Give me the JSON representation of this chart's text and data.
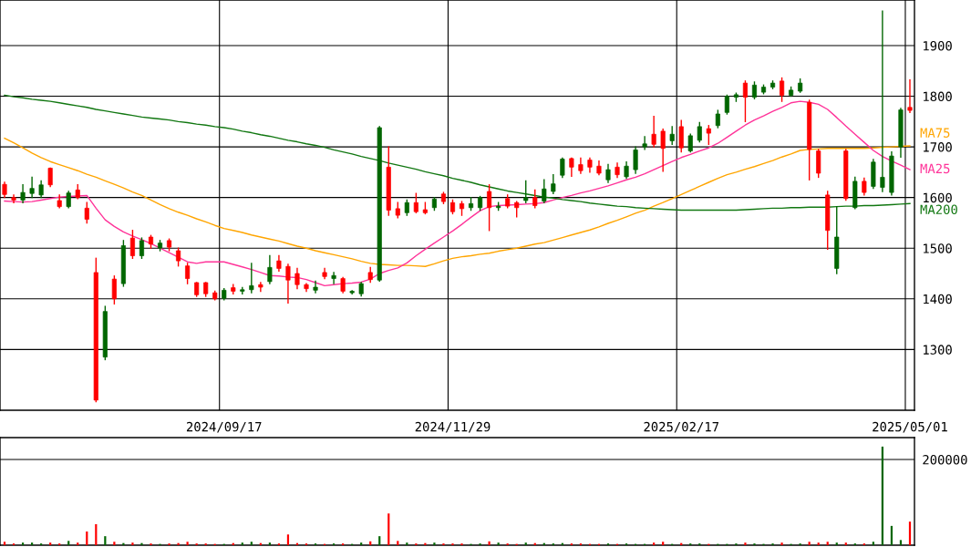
{
  "chart_data": [
    {
      "type": "candlestick",
      "categories": [
        null,
        null,
        null,
        null,
        null,
        null,
        null,
        null,
        null,
        null,
        null,
        null,
        null,
        null,
        null,
        null,
        null,
        null,
        null,
        null,
        null,
        null,
        null,
        null,
        "2024/09/17",
        null,
        null,
        null,
        null,
        null,
        null,
        null,
        null,
        null,
        null,
        null,
        null,
        null,
        null,
        null,
        null,
        null,
        null,
        null,
        null,
        null,
        null,
        null,
        null,
        "2024/11/29",
        null,
        null,
        null,
        null,
        null,
        null,
        null,
        null,
        null,
        null,
        null,
        null,
        null,
        null,
        null,
        null,
        null,
        null,
        null,
        null,
        null,
        null,
        null,
        null,
        "2025/02/17",
        null,
        null,
        null,
        null,
        null,
        null,
        null,
        null,
        null,
        null,
        null,
        null,
        null,
        null,
        null,
        null,
        null,
        null,
        null,
        null,
        null,
        null,
        null,
        null,
        "2025/05/01"
      ],
      "ohlc": [
        [
          1626,
          1630,
          1600,
          1606
        ],
        [
          1600,
          1605,
          1590,
          1595
        ],
        [
          1595,
          1625,
          1590,
          1610
        ],
        [
          1608,
          1640,
          1600,
          1618
        ],
        [
          1605,
          1633,
          1600,
          1625
        ],
        [
          1658,
          1658,
          1622,
          1625
        ],
        [
          1594,
          1605,
          1580,
          1582
        ],
        [
          1582,
          1612,
          1580,
          1609
        ],
        [
          1615,
          1625,
          1598,
          1600
        ],
        [
          1579,
          1590,
          1550,
          1557
        ],
        [
          1452,
          1480,
          1197,
          1200
        ],
        [
          1285,
          1385,
          1280,
          1375
        ],
        [
          1439,
          1445,
          1390,
          1400
        ],
        [
          1430,
          1515,
          1425,
          1505
        ],
        [
          1520,
          1535,
          1480,
          1485
        ],
        [
          1485,
          1520,
          1480,
          1515
        ],
        [
          1522,
          1525,
          1500,
          1508
        ],
        [
          1500,
          1515,
          1495,
          1510
        ],
        [
          1515,
          1518,
          1495,
          1502
        ],
        [
          1495,
          1500,
          1465,
          1475
        ],
        [
          1465,
          1470,
          1430,
          1440
        ],
        [
          1432,
          1432,
          1405,
          1408
        ],
        [
          1432,
          1432,
          1405,
          1410
        ],
        [
          1412,
          1415,
          1398,
          1400
        ],
        [
          1401,
          1420,
          1398,
          1417
        ],
        [
          1422,
          1428,
          1410,
          1415
        ],
        [
          1415,
          1422,
          1410,
          1418
        ],
        [
          1418,
          1470,
          1412,
          1426
        ],
        [
          1428,
          1432,
          1415,
          1423
        ],
        [
          1434,
          1485,
          1430,
          1462
        ],
        [
          1475,
          1485,
          1455,
          1460
        ],
        [
          1464,
          1468,
          1392,
          1437
        ],
        [
          1450,
          1460,
          1420,
          1428
        ],
        [
          1428,
          1430,
          1415,
          1420
        ],
        [
          1417,
          1435,
          1412,
          1423
        ],
        [
          1452,
          1460,
          1440,
          1444
        ],
        [
          1440,
          1452,
          1430,
          1446
        ],
        [
          1440,
          1442,
          1412,
          1415
        ],
        [
          1412,
          1416,
          1410,
          1415
        ],
        [
          1410,
          1432,
          1406,
          1430
        ],
        [
          1452,
          1462,
          1433,
          1438
        ],
        [
          1437,
          1740,
          1435,
          1738
        ],
        [
          1660,
          1700,
          1565,
          1575
        ],
        [
          1578,
          1590,
          1560,
          1565
        ],
        [
          1570,
          1595,
          1565,
          1590
        ],
        [
          1590,
          1608,
          1570,
          1572
        ],
        [
          1576,
          1590,
          1568,
          1570
        ],
        [
          1580,
          1600,
          1575,
          1597
        ],
        [
          1607,
          1610,
          1588,
          1592
        ],
        [
          1590,
          1595,
          1568,
          1572
        ],
        [
          1588,
          1592,
          1565,
          1578
        ],
        [
          1580,
          1600,
          1575,
          1588
        ],
        [
          1580,
          1602,
          1575,
          1600
        ],
        [
          1612,
          1625,
          1535,
          1580
        ],
        [
          1580,
          1590,
          1575,
          1583
        ],
        [
          1598,
          1605,
          1580,
          1583
        ],
        [
          1590,
          1592,
          1562,
          1580
        ],
        [
          1594,
          1633,
          1590,
          1600
        ],
        [
          1600,
          1615,
          1580,
          1584
        ],
        [
          1593,
          1635,
          1590,
          1617
        ],
        [
          1612,
          1645,
          1608,
          1627
        ],
        [
          1644,
          1678,
          1640,
          1676
        ],
        [
          1677,
          1678,
          1642,
          1660
        ],
        [
          1665,
          1678,
          1648,
          1653
        ],
        [
          1674,
          1678,
          1650,
          1660
        ],
        [
          1662,
          1672,
          1645,
          1648
        ],
        [
          1635,
          1665,
          1630,
          1655
        ],
        [
          1660,
          1668,
          1640,
          1645
        ],
        [
          1641,
          1670,
          1638,
          1662
        ],
        [
          1655,
          1700,
          1648,
          1694
        ],
        [
          1700,
          1720,
          1695,
          1706
        ],
        [
          1725,
          1760,
          1700,
          1705
        ],
        [
          1731,
          1735,
          1652,
          1697
        ],
        [
          1712,
          1740,
          1705,
          1725
        ],
        [
          1740,
          1752,
          1690,
          1698
        ],
        [
          1692,
          1725,
          1690,
          1722
        ],
        [
          1713,
          1748,
          1710,
          1740
        ],
        [
          1736,
          1742,
          1705,
          1727
        ],
        [
          1742,
          1772,
          1738,
          1765
        ],
        [
          1768,
          1802,
          1765,
          1800
        ],
        [
          1798,
          1806,
          1790,
          1803
        ],
        [
          1826,
          1830,
          1750,
          1798
        ],
        [
          1798,
          1828,
          1795,
          1822
        ],
        [
          1808,
          1822,
          1805,
          1818
        ],
        [
          1818,
          1830,
          1815,
          1826
        ],
        [
          1830,
          1836,
          1790,
          1802
        ],
        [
          1802,
          1818,
          1800,
          1812
        ],
        [
          1810,
          1834,
          1808,
          1826
        ],
        [
          1788,
          1792,
          1635,
          1695
        ],
        [
          1692,
          1695,
          1640,
          1648
        ],
        [
          1605,
          1612,
          1498,
          1535
        ],
        [
          1460,
          1582,
          1450,
          1522
        ],
        [
          1692,
          1695,
          1595,
          1598
        ],
        [
          1580,
          1640,
          1578,
          1632
        ],
        [
          1632,
          1638,
          1605,
          1610
        ],
        [
          1622,
          1675,
          1618,
          1670
        ],
        [
          1620,
          1968,
          1612,
          1640
        ],
        [
          1610,
          1690,
          1605,
          1682
        ],
        [
          1700,
          1776,
          1680,
          1773
        ],
        [
          1778,
          1832,
          1768,
          1772
        ]
      ],
      "colors": [
        "#ff0000",
        "#ff0000",
        "#006600",
        "#006600",
        "#006600",
        "#ff0000",
        "#ff0000",
        "#006600",
        "#ff0000",
        "#ff0000",
        "#ff0000",
        "#006600",
        "#ff0000",
        "#006600",
        "#ff0000",
        "#006600",
        "#ff0000",
        "#006600",
        "#ff0000",
        "#ff0000",
        "#ff0000",
        "#ff0000",
        "#ff0000",
        "#ff0000",
        "#006600",
        "#ff0000",
        "#006600",
        "#006600",
        "#ff0000",
        "#006600",
        "#ff0000",
        "#ff0000",
        "#ff0000",
        "#ff0000",
        "#006600",
        "#ff0000",
        "#006600",
        "#ff0000",
        "#006600",
        "#006600",
        "#ff0000",
        "#006600",
        "#ff0000",
        "#ff0000",
        "#006600",
        "#ff0000",
        "#ff0000",
        "#006600",
        "#ff0000",
        "#ff0000",
        "#ff0000",
        "#006600",
        "#006600",
        "#ff0000",
        "#006600",
        "#ff0000",
        "#ff0000",
        "#006600",
        "#ff0000",
        "#006600",
        "#006600",
        "#006600",
        "#ff0000",
        "#ff0000",
        "#ff0000",
        "#ff0000",
        "#006600",
        "#ff0000",
        "#006600",
        "#006600",
        "#006600",
        "#ff0000",
        "#ff0000",
        "#006600",
        "#ff0000",
        "#006600",
        "#006600",
        "#ff0000",
        "#006600",
        "#006600",
        "#006600",
        "#ff0000",
        "#006600",
        "#006600",
        "#006600",
        "#ff0000",
        "#006600",
        "#006600",
        "#ff0000",
        "#ff0000",
        "#ff0000",
        "#006600",
        "#ff0000",
        "#006600",
        "#ff0000",
        "#006600",
        "#006600",
        "#006600",
        "#006600",
        "#ff0000"
      ],
      "series": [
        {
          "name": "MA75",
          "type": "line",
          "color": "#ffa500",
          "values": [
            1717,
            1708,
            1698,
            1688,
            1679,
            1671,
            1665,
            1659,
            1653,
            1646,
            1640,
            1633,
            1626,
            1619,
            1611,
            1604,
            1595,
            1586,
            1578,
            1571,
            1565,
            1558,
            1552,
            1545,
            1539,
            1535,
            1531,
            1526,
            1522,
            1518,
            1514,
            1509,
            1504,
            1500,
            1495,
            1491,
            1487,
            1483,
            1479,
            1474,
            1470,
            1468,
            1467,
            1466,
            1466,
            1465,
            1464,
            1469,
            1475,
            1480,
            1483,
            1485,
            1488,
            1490,
            1494,
            1497,
            1500,
            1504,
            1508,
            1511,
            1516,
            1521,
            1526,
            1531,
            1536,
            1542,
            1549,
            1555,
            1562,
            1569,
            1575,
            1583,
            1590,
            1598,
            1606,
            1614,
            1622,
            1630,
            1638,
            1645,
            1650,
            1656,
            1661,
            1667,
            1673,
            1680,
            1686,
            1693,
            1695,
            1696,
            1697,
            1697,
            1697,
            1697,
            1697,
            1698,
            1699,
            1700,
            1701,
            1702
          ]
        },
        {
          "name": "MA25",
          "type": "line",
          "color": "#ff3399",
          "values": [
            1593,
            1592,
            1591,
            1592,
            1595,
            1598,
            1601,
            1602,
            1603,
            1604,
            1579,
            1556,
            1543,
            1532,
            1524,
            1517,
            1509,
            1500,
            1491,
            1482,
            1473,
            1470,
            1473,
            1473,
            1473,
            1468,
            1463,
            1458,
            1452,
            1446,
            1445,
            1443,
            1442,
            1438,
            1432,
            1426,
            1428,
            1430,
            1431,
            1433,
            1439,
            1450,
            1456,
            1461,
            1471,
            1485,
            1498,
            1510,
            1522,
            1534,
            1547,
            1561,
            1574,
            1582,
            1584,
            1585,
            1586,
            1587,
            1588,
            1590,
            1595,
            1600,
            1604,
            1609,
            1613,
            1618,
            1623,
            1629,
            1635,
            1640,
            1647,
            1655,
            1663,
            1671,
            1679,
            1685,
            1692,
            1698,
            1707,
            1719,
            1731,
            1743,
            1753,
            1761,
            1770,
            1778,
            1787,
            1790,
            1788,
            1784,
            1774,
            1758,
            1741,
            1725,
            1709,
            1693,
            1681,
            1672,
            1664,
            1655
          ]
        },
        {
          "name": "MA200",
          "type": "line",
          "color": "#117711",
          "values": [
            1802,
            1799,
            1797,
            1794,
            1792,
            1790,
            1787,
            1784,
            1781,
            1778,
            1774,
            1771,
            1768,
            1765,
            1762,
            1759,
            1757,
            1755,
            1753,
            1750,
            1748,
            1745,
            1743,
            1740,
            1738,
            1735,
            1731,
            1728,
            1724,
            1721,
            1717,
            1713,
            1710,
            1706,
            1703,
            1699,
            1694,
            1690,
            1686,
            1681,
            1677,
            1673,
            1668,
            1664,
            1660,
            1656,
            1651,
            1647,
            1643,
            1638,
            1634,
            1630,
            1625,
            1621,
            1617,
            1613,
            1610,
            1607,
            1604,
            1601,
            1599,
            1596,
            1594,
            1592,
            1589,
            1587,
            1585,
            1583,
            1582,
            1580,
            1579,
            1578,
            1577,
            1576,
            1575,
            1575,
            1575,
            1575,
            1575,
            1575,
            1575,
            1576,
            1577,
            1578,
            1579,
            1579,
            1580,
            1580,
            1581,
            1581,
            1581,
            1582,
            1583,
            1583,
            1584,
            1584,
            1585,
            1586,
            1587,
            1588
          ]
        }
      ],
      "ylim": [
        1180,
        1990
      ],
      "yticks": [
        1300,
        1400,
        1500,
        1600,
        1700,
        1800,
        1900
      ],
      "grid": true
    },
    {
      "type": "bar",
      "categories": [
        null,
        null,
        null,
        null,
        null,
        null,
        null,
        null,
        null,
        null,
        null,
        null,
        null,
        null,
        null,
        null,
        null,
        null,
        null,
        null,
        null,
        null,
        null,
        null,
        null,
        null,
        null,
        null,
        null,
        null,
        null,
        null,
        null,
        null,
        null,
        null,
        null,
        null,
        null,
        null,
        null,
        null,
        null,
        null,
        null,
        null,
        null,
        null,
        null,
        null,
        null,
        null,
        null,
        null,
        null,
        null,
        null,
        null,
        null,
        null,
        null,
        null,
        null,
        null,
        null,
        null,
        null,
        null,
        null,
        null,
        null,
        null,
        null,
        null,
        null,
        null,
        null,
        null,
        null,
        null,
        null,
        null,
        null,
        null,
        null,
        null,
        null,
        null,
        null,
        null,
        null,
        null,
        null,
        null,
        null,
        null,
        null,
        null,
        null,
        null
      ],
      "values": [
        8000,
        4000,
        6000,
        6000,
        4000,
        6000,
        4000,
        10000,
        6000,
        32000,
        49000,
        21000,
        8000,
        5000,
        6000,
        5000,
        4000,
        3000,
        4000,
        5000,
        8000,
        4000,
        4000,
        3000,
        3000,
        5000,
        6000,
        8000,
        5000,
        6000,
        4000,
        25000,
        5000,
        4000,
        4000,
        3000,
        4000,
        4000,
        3000,
        6000,
        9000,
        21000,
        74000,
        10000,
        6000,
        4000,
        5000,
        6000,
        4000,
        4000,
        4000,
        3000,
        4000,
        9000,
        6000,
        4000,
        3000,
        6000,
        5000,
        5000,
        4000,
        5000,
        4000,
        4000,
        3000,
        3000,
        4000,
        3000,
        4000,
        3000,
        3000,
        6000,
        8000,
        3000,
        5000,
        4000,
        4000,
        3000,
        3000,
        3000,
        4000,
        6000,
        4000,
        3000,
        4000,
        6000,
        3000,
        4000,
        8000,
        6000,
        8000,
        6000,
        6000,
        4000,
        4000,
        8000,
        230000,
        45000,
        12000,
        55000
      ],
      "colors": [
        "#ff0000",
        "#ff0000",
        "#006600",
        "#006600",
        "#006600",
        "#ff0000",
        "#ff0000",
        "#006600",
        "#ff0000",
        "#ff0000",
        "#ff0000",
        "#006600",
        "#ff0000",
        "#006600",
        "#ff0000",
        "#006600",
        "#ff0000",
        "#006600",
        "#ff0000",
        "#ff0000",
        "#ff0000",
        "#ff0000",
        "#ff0000",
        "#ff0000",
        "#006600",
        "#ff0000",
        "#006600",
        "#006600",
        "#ff0000",
        "#006600",
        "#ff0000",
        "#ff0000",
        "#ff0000",
        "#ff0000",
        "#006600",
        "#ff0000",
        "#006600",
        "#ff0000",
        "#006600",
        "#006600",
        "#ff0000",
        "#006600",
        "#ff0000",
        "#ff0000",
        "#006600",
        "#ff0000",
        "#ff0000",
        "#006600",
        "#ff0000",
        "#ff0000",
        "#ff0000",
        "#006600",
        "#006600",
        "#ff0000",
        "#006600",
        "#ff0000",
        "#ff0000",
        "#006600",
        "#ff0000",
        "#006600",
        "#006600",
        "#006600",
        "#ff0000",
        "#ff0000",
        "#ff0000",
        "#ff0000",
        "#006600",
        "#ff0000",
        "#006600",
        "#006600",
        "#006600",
        "#ff0000",
        "#ff0000",
        "#006600",
        "#ff0000",
        "#006600",
        "#006600",
        "#ff0000",
        "#006600",
        "#006600",
        "#006600",
        "#ff0000",
        "#006600",
        "#006600",
        "#006600",
        "#ff0000",
        "#006600",
        "#006600",
        "#ff0000",
        "#ff0000",
        "#ff0000",
        "#006600",
        "#ff0000",
        "#006600",
        "#ff0000",
        "#006600",
        "#006600",
        "#006600",
        "#006600",
        "#ff0000"
      ],
      "ylim": [
        0,
        251000
      ],
      "yticks": [
        200000
      ],
      "grid": "y",
      "tick_labels": "y"
    }
  ]
}
